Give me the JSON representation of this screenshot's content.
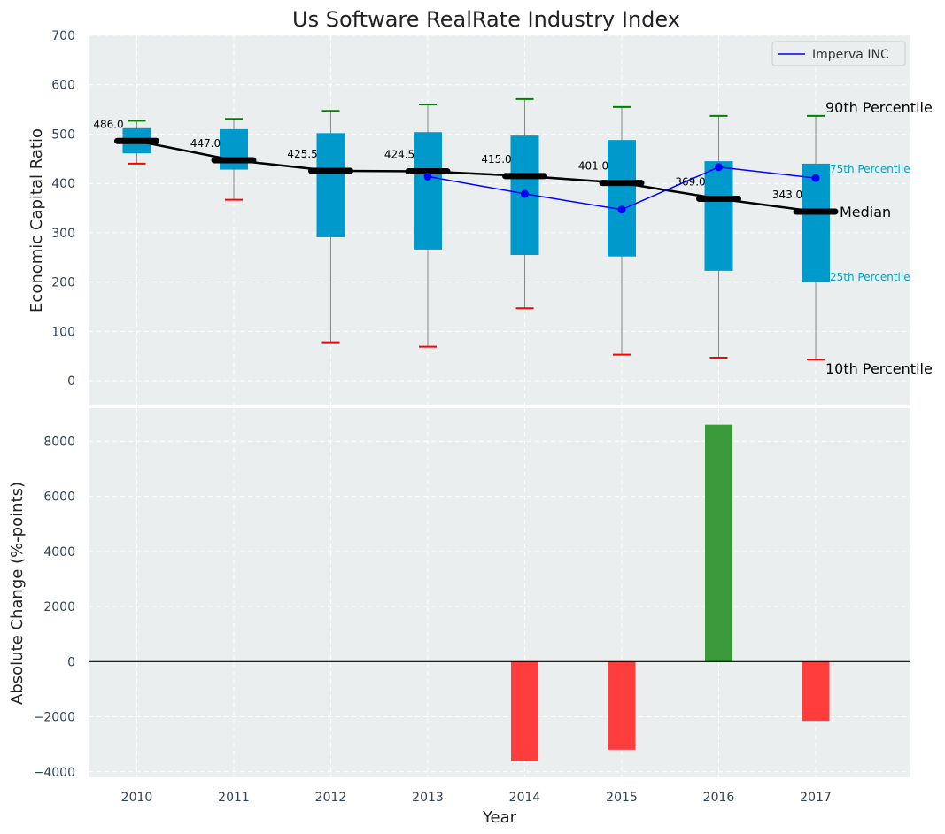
{
  "chart_data": [
    {
      "type": "box",
      "title": "Us Software RealRate Industry Index",
      "ylabel": "Economic Capital Ratio",
      "ylim": [
        -50,
        700
      ],
      "yticks": [
        0,
        100,
        200,
        300,
        400,
        500,
        600,
        700
      ],
      "categories": [
        "2010",
        "2011",
        "2012",
        "2013",
        "2014",
        "2015",
        "2016",
        "2017"
      ],
      "p10": [
        440,
        367,
        78,
        69,
        147,
        53,
        47,
        43
      ],
      "p25": [
        461,
        428,
        291,
        266,
        255,
        252,
        223,
        200
      ],
      "median": [
        486.0,
        447.0,
        425.5,
        424.5,
        415.0,
        401.0,
        369.0,
        343.0
      ],
      "median_labels": [
        "486.0",
        "447.0",
        "425.5",
        "424.5",
        "415.0",
        "401.0",
        "369.0",
        "343.0"
      ],
      "p75": [
        512,
        510,
        502,
        504,
        497,
        488,
        445,
        440
      ],
      "p90": [
        527,
        531,
        547,
        560,
        571,
        555,
        537,
        537
      ],
      "company_series": {
        "name": "Imperva INC",
        "categories": [
          "2013",
          "2014",
          "2015",
          "2016",
          "2017"
        ],
        "values": [
          414,
          379,
          347,
          433,
          411
        ],
        "color": "#0000ff"
      },
      "annotations": {
        "p90": "90th Percentile",
        "p75": "75th Percentile",
        "median": "Median",
        "p25": "25th Percentile",
        "p10": "10th Percentile"
      },
      "colors": {
        "box": "#0099cc",
        "median": "#000000",
        "p90_cap": "#008000",
        "p10_cap": "#ff0000",
        "background": "#eaeeee"
      }
    },
    {
      "type": "bar",
      "xlabel": "Year",
      "ylabel": "Absolute Change (%-points)",
      "ylim": [
        -4200,
        9200
      ],
      "yticks": [
        -4000,
        -2000,
        0,
        2000,
        4000,
        6000,
        8000
      ],
      "ytick_labels": [
        "−4000",
        "−2000",
        "0",
        "2000",
        "4000",
        "6000",
        "8000"
      ],
      "categories": [
        "2010",
        "2011",
        "2012",
        "2013",
        "2014",
        "2015",
        "2016",
        "2017"
      ],
      "values": [
        0,
        0,
        0,
        0,
        -3600,
        -3200,
        8600,
        -2150
      ],
      "colors": {
        "positive": "#3a9a3a",
        "negative": "#ff3d3d"
      }
    }
  ]
}
